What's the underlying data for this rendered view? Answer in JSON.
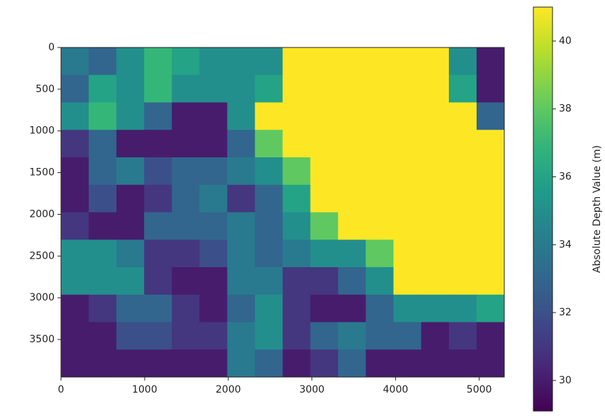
{
  "chart_data": {
    "type": "heatmap",
    "colorbar_label": "Absolute Depth Value (m)",
    "colormap": "viridis",
    "xlim": [
      0,
      5300
    ],
    "ylim": [
      3950,
      0
    ],
    "xticks": [
      0,
      1000,
      2000,
      3000,
      4000,
      5000
    ],
    "yticks": [
      0,
      500,
      1000,
      1500,
      2000,
      2500,
      3000,
      3500
    ],
    "clim": [
      29.1,
      41.0
    ],
    "cticks": [
      30,
      32,
      34,
      36,
      38,
      40
    ],
    "z": [
      [
        34,
        33,
        35,
        37,
        36,
        35,
        35,
        35,
        41,
        41,
        41,
        41,
        41,
        41,
        35,
        30
      ],
      [
        33,
        36,
        35,
        37,
        35,
        35,
        35,
        36,
        41,
        41,
        41,
        41,
        41,
        41,
        36,
        30
      ],
      [
        35,
        37,
        35,
        33,
        30,
        30,
        35,
        41,
        41,
        41,
        41,
        41,
        41,
        41,
        41,
        33
      ],
      [
        31,
        33,
        30,
        30,
        30,
        30,
        33,
        38,
        41,
        41,
        41,
        41,
        41,
        41,
        41,
        41
      ],
      [
        30,
        33,
        34,
        32,
        33,
        33,
        34,
        35,
        38,
        41,
        41,
        41,
        41,
        41,
        41,
        41
      ],
      [
        30,
        32,
        30,
        31,
        33,
        34,
        31,
        33,
        36,
        41,
        41,
        41,
        41,
        41,
        41,
        41
      ],
      [
        31,
        30,
        30,
        33,
        33,
        33,
        34,
        33,
        35,
        38,
        41,
        41,
        41,
        41,
        41,
        41
      ],
      [
        35,
        35,
        34,
        31,
        31,
        32,
        34,
        33,
        34,
        35,
        35,
        38,
        41,
        41,
        41,
        41
      ],
      [
        35,
        35,
        35,
        31,
        30,
        30,
        34,
        34,
        31,
        31,
        33,
        35,
        41,
        41,
        41,
        41
      ],
      [
        30,
        31,
        33,
        33,
        31,
        30,
        33,
        35,
        31,
        30,
        30,
        33,
        35,
        35,
        35,
        36
      ],
      [
        30,
        30,
        32,
        32,
        31,
        31,
        34,
        35,
        31,
        33,
        34,
        33,
        33,
        30,
        31,
        30
      ],
      [
        30,
        30,
        30,
        30,
        30,
        30,
        34,
        33,
        30,
        31,
        33,
        30,
        30,
        30,
        30,
        30
      ]
    ]
  }
}
